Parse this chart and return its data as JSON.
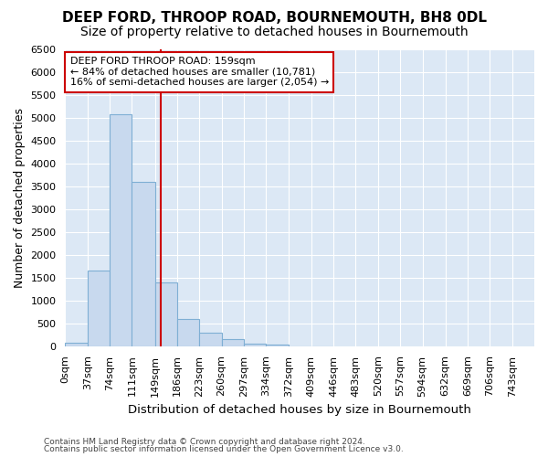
{
  "title": "DEEP FORD, THROOP ROAD, BOURNEMOUTH, BH8 0DL",
  "subtitle": "Size of property relative to detached houses in Bournemouth",
  "xlabel": "Distribution of detached houses by size in Bournemouth",
  "ylabel": "Number of detached properties",
  "footer1": "Contains HM Land Registry data © Crown copyright and database right 2024.",
  "footer2": "Contains public sector information licensed under the Open Government Licence v3.0.",
  "bin_edges": [
    0,
    37,
    74,
    111,
    149,
    186,
    223,
    260,
    297,
    334,
    372,
    409,
    446,
    483,
    520,
    557,
    594,
    632,
    669,
    706,
    743
  ],
  "bar_heights": [
    75,
    1650,
    5080,
    3600,
    1400,
    600,
    300,
    150,
    50,
    30,
    5,
    5,
    0,
    0,
    0,
    0,
    0,
    0,
    0,
    0
  ],
  "bar_color": "#c8d9ee",
  "bar_edge_color": "#7fafd4",
  "property_size": 159,
  "annotation_title": "DEEP FORD THROOP ROAD: 159sqm",
  "annotation_line1": "← 84% of detached houses are smaller (10,781)",
  "annotation_line2": "16% of semi-detached houses are larger (2,054) →",
  "red_line_color": "#cc0000",
  "annotation_box_color": "#cc0000",
  "ylim": [
    0,
    6500
  ],
  "yticks": [
    0,
    500,
    1000,
    1500,
    2000,
    2500,
    3000,
    3500,
    4000,
    4500,
    5000,
    5500,
    6000,
    6500
  ],
  "bg_color": "#ffffff",
  "axes_bg_color": "#dce8f5",
  "grid_color": "#ffffff",
  "title_fontsize": 11,
  "subtitle_fontsize": 10,
  "tick_label_fontsize": 8,
  "ylabel_fontsize": 9,
  "xlabel_fontsize": 9.5
}
